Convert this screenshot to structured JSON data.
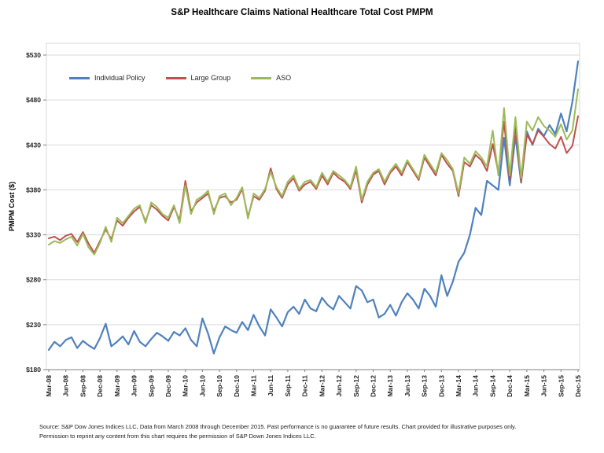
{
  "title": "S&P Healthcare Claims National Healthcare Total Cost PMPM",
  "y_axis_title": "PMPM Cost ($)",
  "legend": [
    {
      "label": "Individual Policy",
      "color": "#4F81BD"
    },
    {
      "label": "Large Group",
      "color": "#C0504D"
    },
    {
      "label": "ASO",
      "color": "#9BBB59"
    }
  ],
  "footnote_line1": "Source: S&P Dow Jones Indices LLC, Data from March 2008 through December 2015. Past performance is no guarantee of future results. Chart provided for illustrative purposes only.",
  "footnote_line2": "Permission to reprint any content from this chart requires the permission of S&P Down Jones Indices LLC.",
  "chart_data": {
    "type": "line",
    "title": "S&P Healthcare Claims National Healthcare Total Cost PMPM",
    "xlabel": "",
    "ylabel": "PMPM Cost ($)",
    "ylim": [
      180,
      530
    ],
    "y_ticks": [
      180,
      230,
      280,
      330,
      380,
      430,
      480,
      530
    ],
    "y_tick_prefix": "$",
    "grid": true,
    "legend_position": "top-left-inside",
    "points_per_tick": 3,
    "x_tick_labels": [
      "Mar-08",
      "Jun-08",
      "Sep-08",
      "Dec-08",
      "Mar-09",
      "Jun-09",
      "Sep-09",
      "Dec-09",
      "Mar-10",
      "Jun-10",
      "Sep-10",
      "Dec-10",
      "Mar-11",
      "Jun-11",
      "Sep-11",
      "Dec-11",
      "Mar-12",
      "Jun-12",
      "Sep-12",
      "Dec-12",
      "Mar-13",
      "Jun-13",
      "Sep-13",
      "Dec-13",
      "Mar-14",
      "Jun-14",
      "Sep-14",
      "Dec-14",
      "Mar-15",
      "Jun-15",
      "Sep-15",
      "Dec-15"
    ],
    "series": [
      {
        "name": "Individual Policy",
        "color": "#4F81BD",
        "width": 2.2,
        "values": [
          202,
          211,
          206,
          213,
          216,
          204,
          212,
          207,
          203,
          215,
          231,
          206,
          211,
          217,
          208,
          223,
          211,
          206,
          214,
          221,
          217,
          212,
          222,
          218,
          226,
          213,
          206,
          237,
          220,
          198,
          216,
          228,
          224,
          221,
          233,
          224,
          241,
          228,
          218,
          247,
          238,
          228,
          244,
          250,
          242,
          258,
          248,
          245,
          260,
          252,
          247,
          262,
          255,
          248,
          273,
          268,
          255,
          258,
          238,
          242,
          252,
          240,
          255,
          265,
          258,
          248,
          270,
          262,
          250,
          285,
          262,
          278,
          300,
          310,
          330,
          360,
          352,
          390,
          385,
          380,
          438,
          385,
          440,
          388,
          445,
          430,
          448,
          440,
          452,
          442,
          465,
          445,
          478,
          523
        ]
      },
      {
        "name": "Large Group",
        "color": "#C0504D",
        "width": 2,
        "values": [
          326,
          328,
          324,
          329,
          331,
          322,
          333,
          320,
          310,
          323,
          336,
          325,
          346,
          340,
          349,
          356,
          361,
          345,
          363,
          358,
          351,
          346,
          361,
          346,
          390,
          356,
          366,
          371,
          376,
          356,
          371,
          373,
          366,
          369,
          381,
          350,
          373,
          369,
          379,
          404,
          381,
          371,
          386,
          393,
          379,
          386,
          389,
          381,
          396,
          386,
          399,
          393,
          389,
          381,
          402,
          366,
          386,
          397,
          401,
          386,
          399,
          406,
          396,
          411,
          401,
          391,
          416,
          406,
          396,
          419,
          409,
          401,
          373,
          411,
          406,
          419,
          413,
          401,
          431,
          399,
          456,
          391,
          451,
          389,
          441,
          431,
          446,
          439,
          431,
          426,
          439,
          421,
          429,
          462
        ]
      },
      {
        "name": "ASO",
        "color": "#9BBB59",
        "width": 2,
        "values": [
          319,
          323,
          321,
          325,
          328,
          318,
          331,
          316,
          308,
          321,
          339,
          322,
          349,
          343,
          351,
          359,
          363,
          343,
          366,
          361,
          353,
          349,
          363,
          343,
          385,
          353,
          369,
          373,
          379,
          353,
          373,
          376,
          363,
          371,
          383,
          348,
          376,
          371,
          381,
          400,
          383,
          373,
          389,
          396,
          381,
          389,
          391,
          383,
          399,
          389,
          401,
          396,
          391,
          383,
          406,
          369,
          389,
          399,
          403,
          389,
          401,
          409,
          399,
          413,
          403,
          393,
          419,
          409,
          399,
          421,
          413,
          403,
          376,
          416,
          409,
          423,
          416,
          406,
          446,
          396,
          471,
          396,
          461,
          393,
          456,
          446,
          461,
          451,
          446,
          439,
          453,
          436,
          446,
          492
        ]
      }
    ]
  }
}
